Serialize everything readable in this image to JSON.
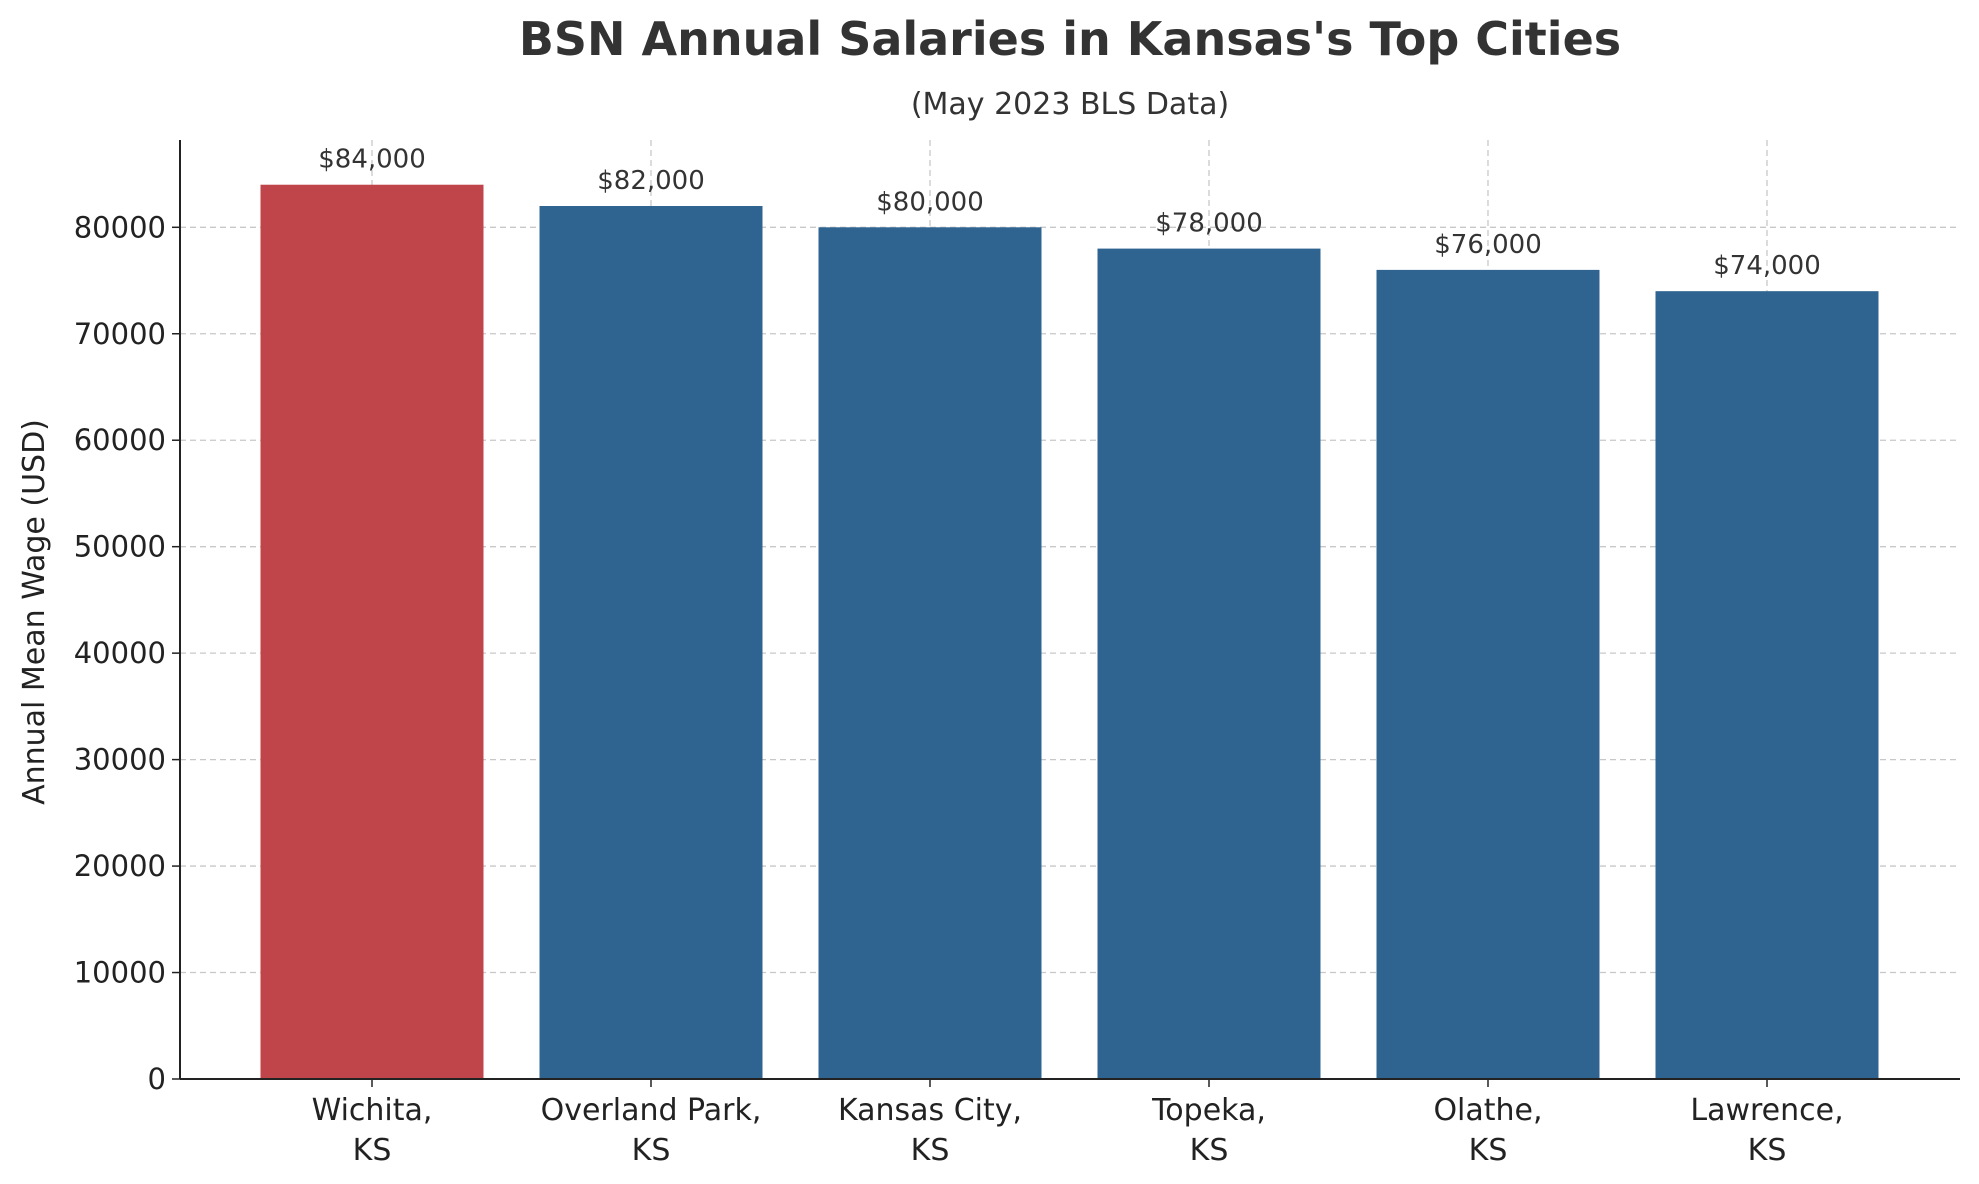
{
  "chart_data": {
    "type": "bar",
    "title": "BSN Annual Salaries in Kansas's Top Cities",
    "subtitle": "(May 2023 BLS Data)",
    "xlabel": "",
    "ylabel": "Annual Mean Wage (USD)",
    "categories": [
      [
        "Wichita,",
        "KS"
      ],
      [
        "Overland Park,",
        "KS"
      ],
      [
        "Kansas City,",
        "KS"
      ],
      [
        "Topeka,",
        "KS"
      ],
      [
        "Olathe,",
        "KS"
      ],
      [
        "Lawrence,",
        "KS"
      ]
    ],
    "values": [
      84000,
      82000,
      80000,
      78000,
      76000,
      74000
    ],
    "value_labels": [
      "$84,000",
      "$82,000",
      "$80,000",
      "$78,000",
      "$76,000",
      "$74,000"
    ],
    "bar_colors": [
      "#c0454a",
      "#2f6491",
      "#2f6491",
      "#2f6491",
      "#2f6491",
      "#2f6491"
    ],
    "ylim": [
      0,
      88200
    ],
    "yticks": [
      0,
      10000,
      20000,
      30000,
      40000,
      50000,
      60000,
      70000,
      80000
    ],
    "ytick_labels": [
      "0",
      "10000",
      "20000",
      "30000",
      "40000",
      "50000",
      "60000",
      "70000",
      "80000"
    ],
    "grid": true,
    "grid_color": "#c8c8c8",
    "text_color": "#333333",
    "axis_color": "#222222"
  }
}
